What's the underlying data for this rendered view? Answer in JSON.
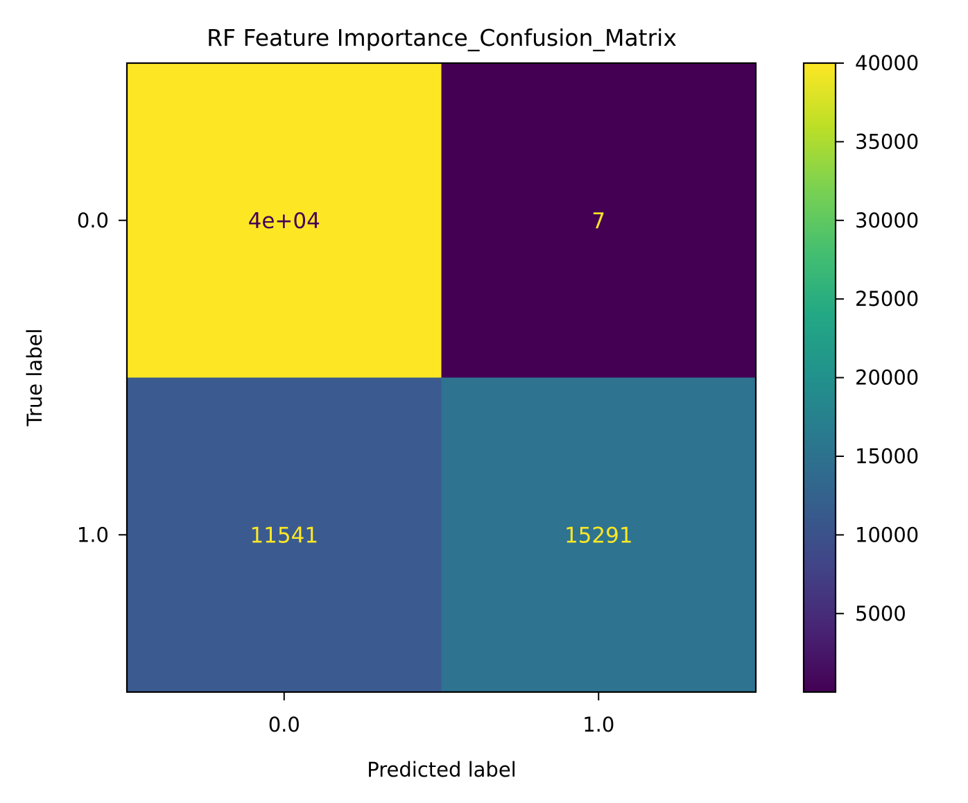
{
  "chart_data": {
    "type": "heatmap",
    "title": "RF Feature Importance_Confusion_Matrix",
    "xlabel": "Predicted label",
    "ylabel": "True label",
    "x_categories": [
      "0.0",
      "1.0"
    ],
    "y_categories": [
      "0.0",
      "1.0"
    ],
    "values": [
      [
        40000,
        7
      ],
      [
        11541,
        15291
      ]
    ],
    "cell_labels": [
      [
        "4e+04",
        "7"
      ],
      [
        "11541",
        "15291"
      ]
    ],
    "colormap": "viridis",
    "colorbar": {
      "range": [
        7,
        40000
      ],
      "ticks": [
        5000,
        10000,
        15000,
        20000,
        25000,
        30000,
        35000,
        40000
      ],
      "tick_labels": [
        "5000",
        "10000",
        "15000",
        "20000",
        "25000",
        "30000",
        "35000",
        "40000"
      ]
    },
    "colors": {
      "cell_0_0": "#fde725",
      "cell_0_1": "#440154",
      "cell_1_0": "#3b5b90",
      "cell_1_1": "#2e7390",
      "text_dark": "#440154",
      "text_light": "#fde725"
    }
  }
}
